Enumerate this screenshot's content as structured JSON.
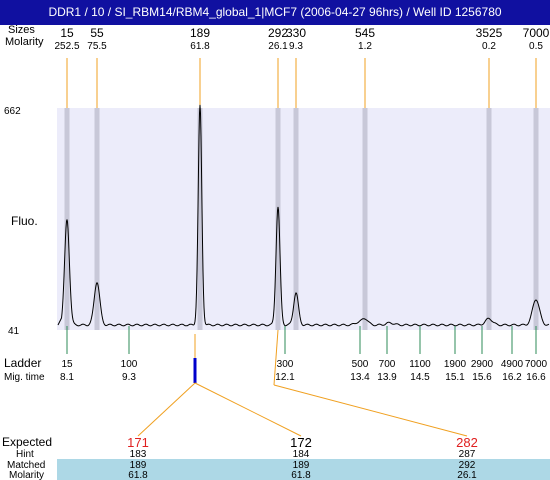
{
  "title": "DDR1 / 10 / SI_RBM14/RBM4_global_1|MCF7 (2006-04-27 96hrs) / Well ID 1256780",
  "labels": {
    "sizes": "Sizes",
    "molarity": "Molarity",
    "fluo": "Fluo.",
    "ladder": "Ladder",
    "mig_time": "Mig. time",
    "expected": "Expected",
    "hint": "Hint",
    "matched": "Matched",
    "molarity_bottom": "Molarity"
  },
  "colors": {
    "title_bg": "#1010a0",
    "plot_bg": "#ececfa",
    "band": "#c8c8d8",
    "orange": "#f0a020",
    "green": "#2e8b57",
    "marker": "#0000cc",
    "red": "#e02020",
    "table_bg": "#add8e6"
  },
  "chart_data": {
    "type": "line",
    "y_axis": {
      "max": 662,
      "min": 41
    },
    "peaks": [
      {
        "size": "15",
        "molarity": "252.5"
      },
      {
        "size": "55",
        "molarity": "75.5"
      },
      {
        "size": "189",
        "molarity": "61.8"
      },
      {
        "size": "292",
        "molarity": "26.1"
      },
      {
        "size": "330",
        "molarity": "9.3"
      },
      {
        "size": "545",
        "molarity": "1.2"
      },
      {
        "size": "3525",
        "molarity": "0.2"
      },
      {
        "size": "7000",
        "molarity": "0.5"
      }
    ],
    "ladder": [
      {
        "size": "15",
        "mig": "8.1"
      },
      {
        "size": "100",
        "mig": "9.3"
      },
      {
        "size": "300",
        "mig": "12.1"
      },
      {
        "size": "500",
        "mig": "13.4"
      },
      {
        "size": "700",
        "mig": "13.9"
      },
      {
        "size": "1100",
        "mig": "14.5"
      },
      {
        "size": "1900",
        "mig": "15.1"
      },
      {
        "size": "2900",
        "mig": "15.6"
      },
      {
        "size": "4900",
        "mig": "16.2"
      },
      {
        "size": "7000",
        "mig": "16.6"
      }
    ],
    "expected": [
      {
        "expected": "171",
        "hint": "183",
        "matched": "189",
        "molarity": "61.8"
      },
      {
        "expected": "172",
        "hint": "184",
        "matched": "189",
        "molarity": "61.8"
      },
      {
        "expected": "282",
        "hint": "287",
        "matched": "292",
        "molarity": "26.1"
      }
    ]
  }
}
